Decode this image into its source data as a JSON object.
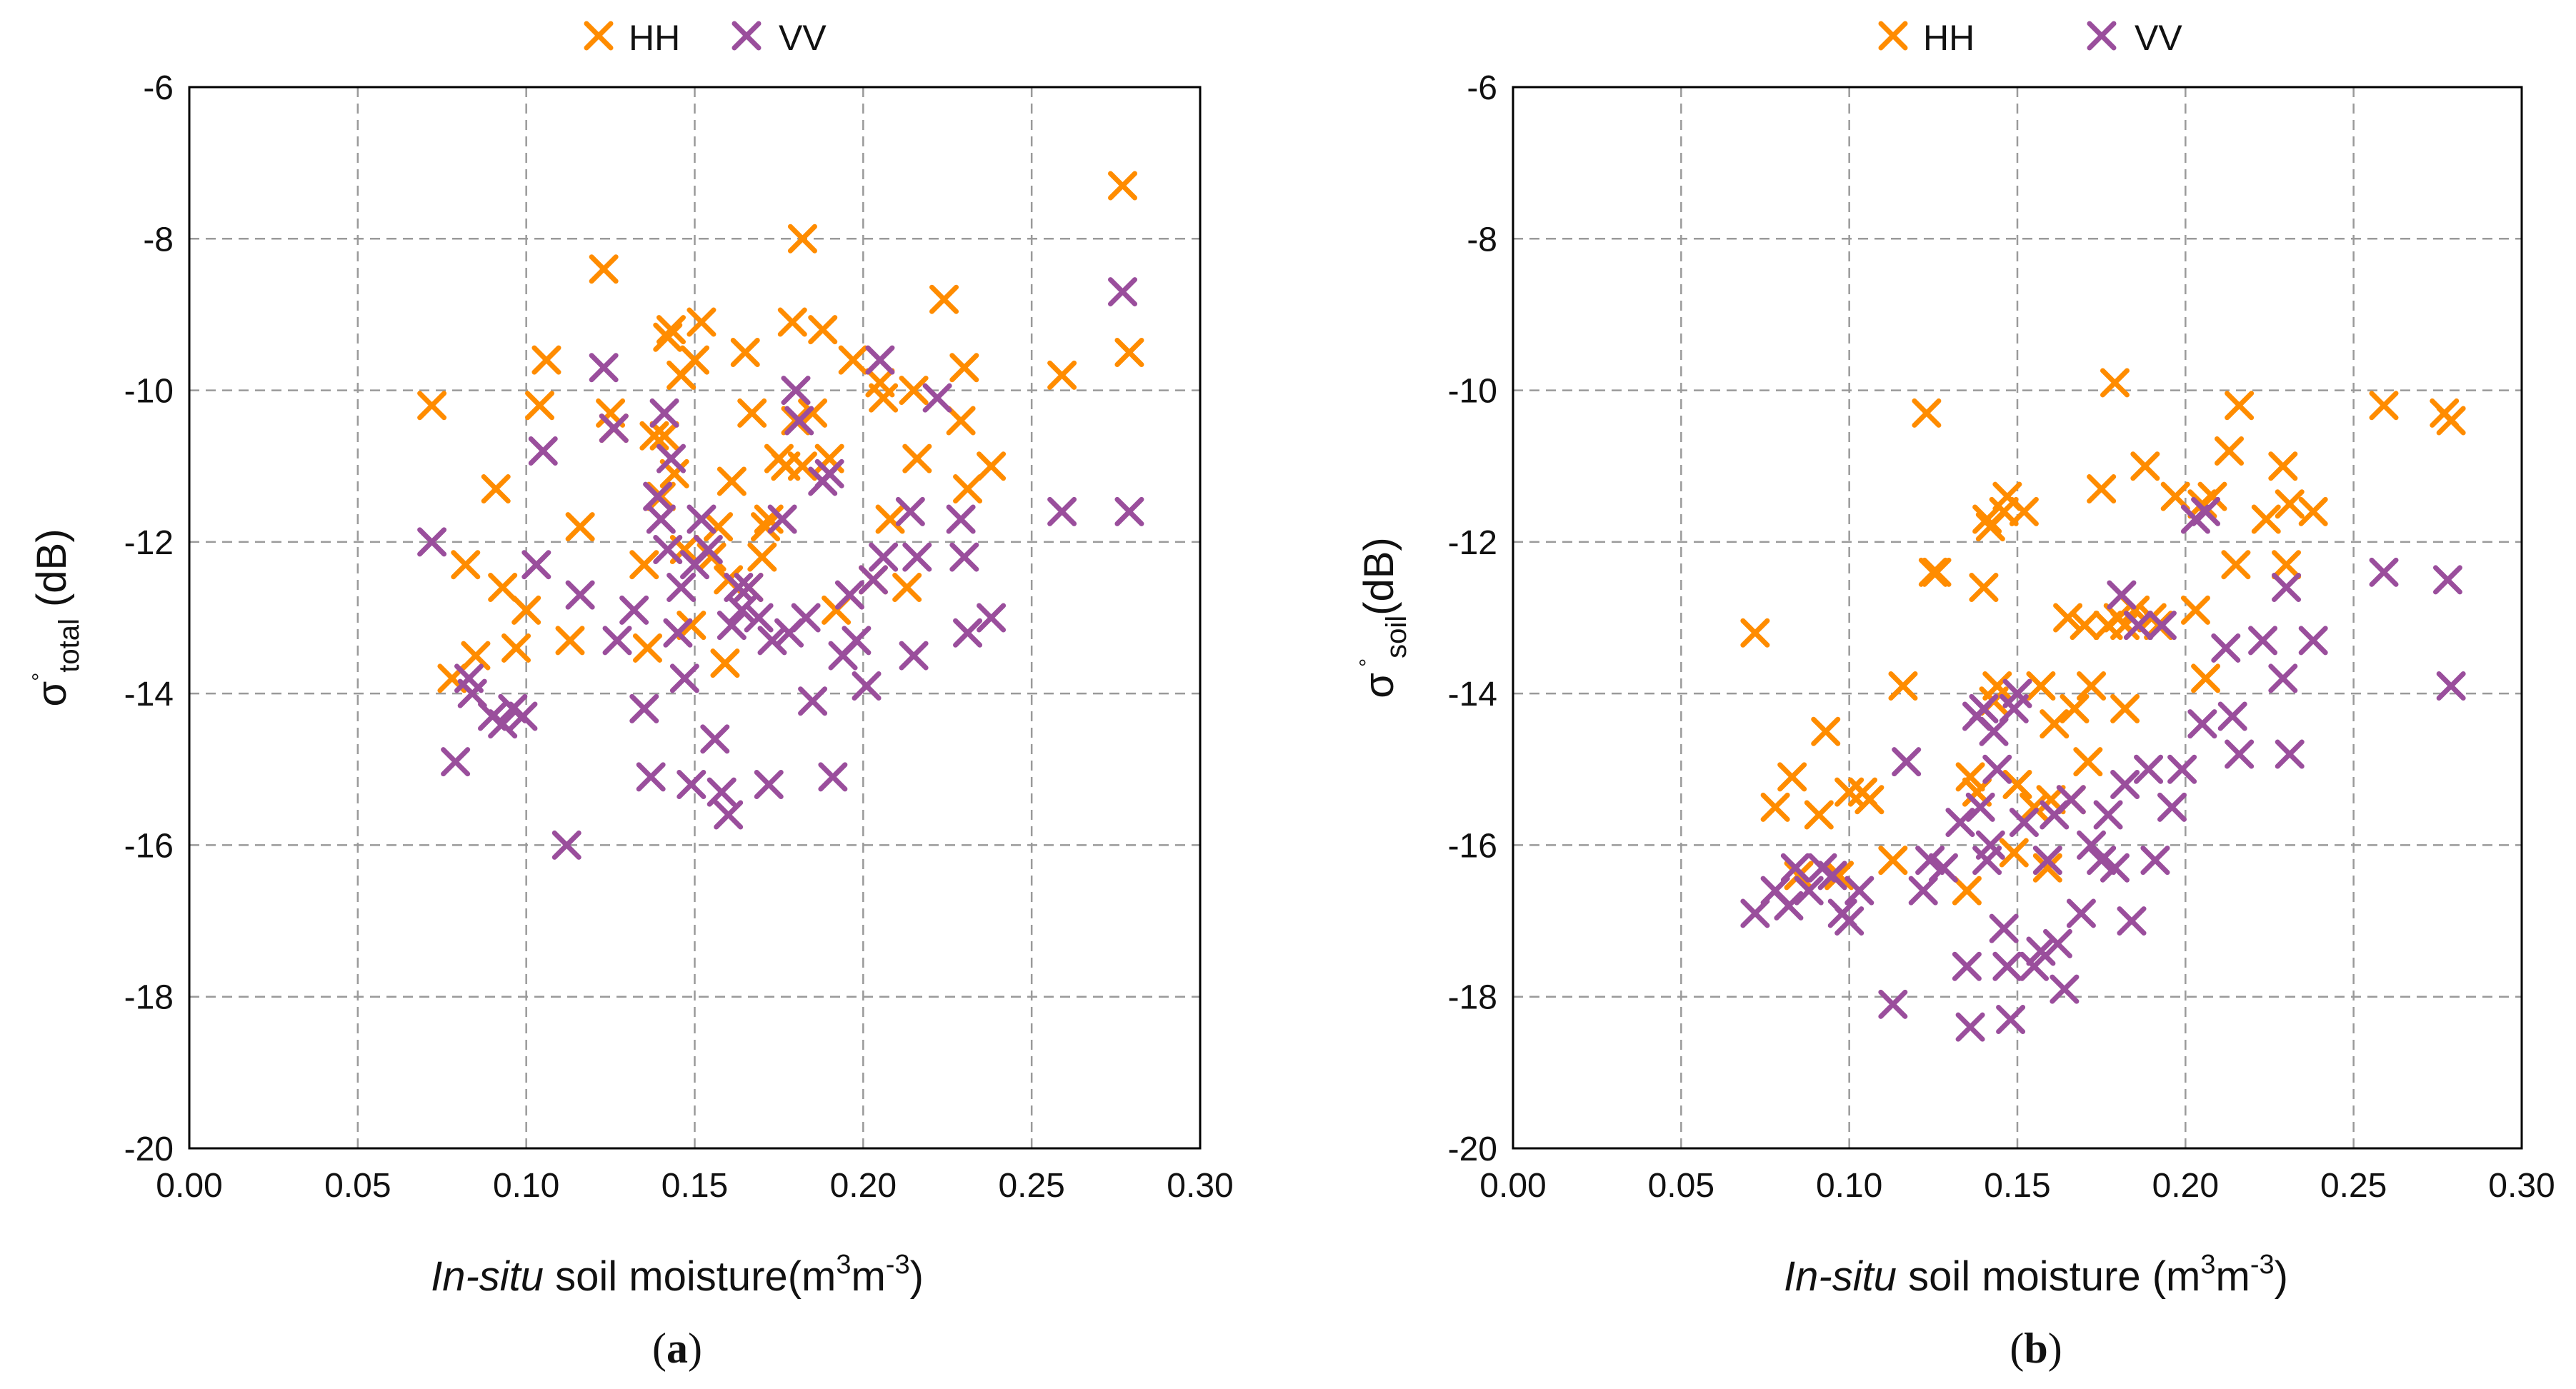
{
  "colors": {
    "HH": "#FF8C00",
    "VV": "#9A4E9C",
    "grid": "#9a9a9a",
    "axis": "#000000"
  },
  "chart_data": [
    {
      "type": "scatter",
      "panel_label": {
        "open": "(",
        "letter": "a",
        "close": ")"
      },
      "xlabel": {
        "italic": "In-situ",
        "rest": " soil moisture(m",
        "sup1": "3",
        "mid": "m",
        "sup2": "-3",
        "end": ")"
      },
      "ylabel": {
        "main": "σ",
        "ring": "°",
        "sub": "total",
        "unit": " (dB)"
      },
      "xlim": [
        0,
        0.3
      ],
      "ylim": [
        -20,
        -6
      ],
      "xticks": [
        "0.00",
        "0.05",
        "0.10",
        "0.15",
        "0.20",
        "0.25",
        "0.30"
      ],
      "yticks": [
        "-6",
        "-8",
        "-10",
        "-12",
        "-14",
        "-16",
        "-18",
        "-20"
      ],
      "grid": true,
      "legend": "top-center",
      "series": [
        {
          "name": "HH",
          "x": [
            0.072,
            0.078,
            0.082,
            0.085,
            0.091,
            0.093,
            0.097,
            0.1,
            0.104,
            0.106,
            0.113,
            0.116,
            0.123,
            0.125,
            0.126,
            0.135,
            0.136,
            0.138,
            0.14,
            0.141,
            0.142,
            0.143,
            0.144,
            0.146,
            0.147,
            0.149,
            0.15,
            0.152,
            0.155,
            0.157,
            0.159,
            0.16,
            0.161,
            0.165,
            0.166,
            0.167,
            0.17,
            0.171,
            0.172,
            0.175,
            0.177,
            0.179,
            0.18,
            0.182,
            0.182,
            0.185,
            0.188,
            0.19,
            0.192,
            0.197,
            0.203,
            0.205,
            0.206,
            0.208,
            0.213,
            0.215,
            0.216,
            0.224,
            0.229,
            0.23,
            0.231,
            0.238,
            0.259,
            0.277,
            0.279
          ],
          "y": [
            -10.2,
            -13.8,
            -12.3,
            -13.5,
            -11.3,
            -12.6,
            -13.4,
            -12.9,
            -10.2,
            -9.6,
            -13.3,
            -11.8,
            -8.4,
            -10.3,
            -10.5,
            -12.3,
            -13.4,
            -10.6,
            -11.4,
            -10.6,
            -9.3,
            -9.2,
            -11.1,
            -9.8,
            -12.1,
            -13.1,
            -9.6,
            -9.1,
            -12.2,
            -11.8,
            -13.6,
            -12.5,
            -11.2,
            -9.5,
            -12.6,
            -10.3,
            -12.2,
            -11.8,
            -11.7,
            -10.9,
            -11.0,
            -9.1,
            -10.4,
            -11.0,
            -8.0,
            -10.3,
            -9.2,
            -10.9,
            -12.9,
            -9.6,
            -12.5,
            -9.9,
            -10.1,
            -11.7,
            -12.6,
            -10.0,
            -10.9,
            -8.8,
            -10.4,
            -9.7,
            -11.3,
            -11.0,
            -9.8,
            -7.3,
            -9.5
          ]
        },
        {
          "name": "VV",
          "x": [
            0.072,
            0.079,
            0.083,
            0.084,
            0.09,
            0.093,
            0.096,
            0.099,
            0.103,
            0.105,
            0.112,
            0.116,
            0.123,
            0.126,
            0.127,
            0.132,
            0.135,
            0.137,
            0.139,
            0.14,
            0.141,
            0.142,
            0.143,
            0.145,
            0.146,
            0.147,
            0.149,
            0.15,
            0.152,
            0.154,
            0.156,
            0.158,
            0.16,
            0.161,
            0.163,
            0.164,
            0.166,
            0.169,
            0.172,
            0.173,
            0.176,
            0.178,
            0.18,
            0.181,
            0.183,
            0.185,
            0.188,
            0.19,
            0.191,
            0.194,
            0.196,
            0.198,
            0.201,
            0.203,
            0.205,
            0.206,
            0.214,
            0.215,
            0.216,
            0.222,
            0.229,
            0.23,
            0.231,
            0.238,
            0.259,
            0.277,
            0.279
          ],
          "y": [
            -12.0,
            -14.9,
            -13.8,
            -14.0,
            -14.3,
            -14.4,
            -14.2,
            -14.3,
            -12.3,
            -10.8,
            -16.0,
            -12.7,
            -9.7,
            -10.5,
            -13.3,
            -12.9,
            -14.2,
            -15.1,
            -11.4,
            -11.7,
            -10.3,
            -12.1,
            -10.9,
            -13.2,
            -12.6,
            -13.8,
            -15.2,
            -12.3,
            -11.7,
            -12.1,
            -14.6,
            -15.3,
            -15.6,
            -13.1,
            -12.6,
            -12.9,
            -12.6,
            -13.0,
            -15.2,
            -13.3,
            -11.7,
            -13.2,
            -10.0,
            -10.4,
            -13.0,
            -14.1,
            -11.2,
            -11.1,
            -15.1,
            -13.5,
            -12.7,
            -13.3,
            -13.9,
            -12.5,
            -9.6,
            -12.2,
            -11.6,
            -13.5,
            -12.2,
            -10.1,
            -11.7,
            -12.2,
            -13.2,
            -13.0,
            -11.6,
            -8.7,
            -11.6
          ]
        }
      ]
    },
    {
      "type": "scatter",
      "panel_label": {
        "open": "(",
        "letter": "b",
        "close": ")"
      },
      "xlabel": {
        "italic": "In-situ",
        "rest": " soil moisture (m",
        "sup1": "3",
        "mid": "m",
        "sup2": "-3",
        "end": ")"
      },
      "ylabel": {
        "main": "σ",
        "ring": "°",
        "sub": "soil",
        "unit": "(dB)"
      },
      "xlim": [
        0,
        0.3
      ],
      "ylim": [
        -20,
        -6
      ],
      "xticks": [
        "0.00",
        "0.05",
        "0.10",
        "0.15",
        "0.20",
        "0.25",
        "0.30"
      ],
      "yticks": [
        "-6",
        "-8",
        "-10",
        "-12",
        "-14",
        "-16",
        "-18",
        "-20"
      ],
      "grid": true,
      "legend": "top-center",
      "series": [
        {
          "name": "HH",
          "x": [
            0.072,
            0.078,
            0.083,
            0.085,
            0.091,
            0.093,
            0.097,
            0.1,
            0.104,
            0.106,
            0.113,
            0.116,
            0.123,
            0.125,
            0.126,
            0.135,
            0.136,
            0.138,
            0.14,
            0.141,
            0.142,
            0.143,
            0.144,
            0.146,
            0.147,
            0.149,
            0.15,
            0.152,
            0.155,
            0.157,
            0.159,
            0.16,
            0.161,
            0.165,
            0.166,
            0.167,
            0.17,
            0.171,
            0.172,
            0.175,
            0.177,
            0.179,
            0.18,
            0.182,
            0.182,
            0.185,
            0.188,
            0.19,
            0.192,
            0.197,
            0.203,
            0.205,
            0.206,
            0.208,
            0.213,
            0.215,
            0.216,
            0.224,
            0.229,
            0.23,
            0.231,
            0.238,
            0.259,
            0.277,
            0.279
          ],
          "y": [
            -13.2,
            -15.5,
            -15.1,
            -16.4,
            -15.6,
            -14.5,
            -16.4,
            -15.3,
            -15.3,
            -15.4,
            -16.2,
            -13.9,
            -10.3,
            -12.4,
            -12.4,
            -16.6,
            -15.1,
            -15.3,
            -12.6,
            -11.7,
            -11.8,
            -14.1,
            -13.9,
            -11.6,
            -11.4,
            -16.1,
            -15.2,
            -11.6,
            -15.5,
            -13.9,
            -16.3,
            -15.4,
            -14.4,
            -13.0,
            -15.4,
            -14.2,
            -13.1,
            -14.9,
            -13.9,
            -11.3,
            -13.1,
            -9.9,
            -13.0,
            -13.1,
            -14.2,
            -12.9,
            -11.0,
            -13.0,
            -13.1,
            -11.4,
            -12.9,
            -11.5,
            -13.8,
            -11.4,
            -10.8,
            -12.3,
            -10.2,
            -11.7,
            -11.0,
            -12.3,
            -11.5,
            -11.6,
            -10.2,
            -10.3,
            -10.4
          ]
        },
        {
          "name": "VV",
          "x": [
            0.072,
            0.078,
            0.082,
            0.084,
            0.088,
            0.092,
            0.095,
            0.098,
            0.1,
            0.103,
            0.113,
            0.117,
            0.122,
            0.124,
            0.128,
            0.133,
            0.135,
            0.136,
            0.138,
            0.139,
            0.14,
            0.141,
            0.142,
            0.143,
            0.144,
            0.146,
            0.147,
            0.148,
            0.149,
            0.15,
            0.152,
            0.155,
            0.157,
            0.159,
            0.161,
            0.162,
            0.164,
            0.166,
            0.169,
            0.172,
            0.175,
            0.177,
            0.179,
            0.181,
            0.182,
            0.184,
            0.186,
            0.189,
            0.191,
            0.193,
            0.196,
            0.199,
            0.203,
            0.205,
            0.206,
            0.212,
            0.214,
            0.216,
            0.223,
            0.229,
            0.23,
            0.231,
            0.238,
            0.259,
            0.278,
            0.279
          ],
          "y": [
            -16.9,
            -16.6,
            -16.8,
            -16.3,
            -16.6,
            -16.3,
            -16.4,
            -16.9,
            -17.0,
            -16.6,
            -18.1,
            -14.9,
            -16.6,
            -16.2,
            -16.3,
            -15.7,
            -17.6,
            -18.4,
            -14.3,
            -15.5,
            -14.2,
            -16.2,
            -16.0,
            -14.5,
            -15.0,
            -17.1,
            -17.6,
            -18.3,
            -14.2,
            -14.0,
            -15.7,
            -17.6,
            -17.4,
            -16.2,
            -15.6,
            -17.3,
            -17.9,
            -15.4,
            -16.9,
            -16.0,
            -16.2,
            -15.6,
            -16.3,
            -12.7,
            -15.2,
            -17.0,
            -13.1,
            -15.0,
            -16.2,
            -13.1,
            -15.5,
            -15.0,
            -11.7,
            -14.4,
            -11.6,
            -13.4,
            -14.3,
            -14.8,
            -13.3,
            -13.8,
            -12.6,
            -14.8,
            -13.3,
            -12.4,
            -12.5,
            -13.9
          ]
        }
      ]
    }
  ]
}
